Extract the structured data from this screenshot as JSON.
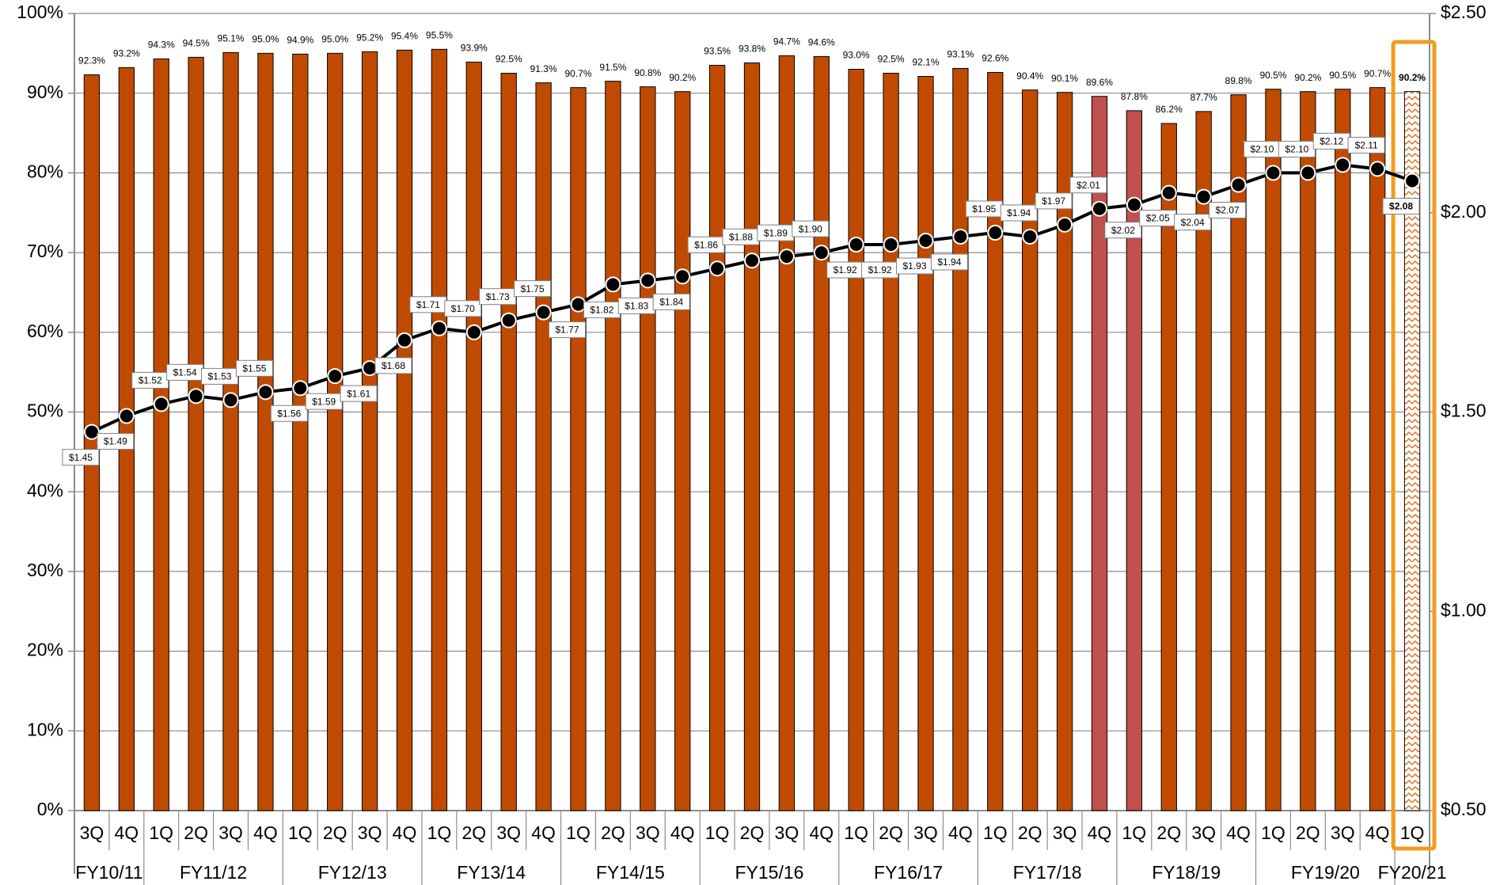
{
  "chart_data": {
    "type": "bar_line",
    "categories": [
      "3Q",
      "4Q",
      "1Q",
      "2Q",
      "3Q",
      "4Q",
      "1Q",
      "2Q",
      "3Q",
      "4Q",
      "1Q",
      "2Q",
      "3Q",
      "4Q",
      "1Q",
      "2Q",
      "3Q",
      "4Q",
      "1Q",
      "2Q",
      "3Q",
      "4Q",
      "1Q",
      "2Q",
      "3Q",
      "4Q",
      "1Q",
      "2Q",
      "3Q",
      "4Q",
      "1Q",
      "2Q",
      "3Q",
      "4Q",
      "1Q",
      "2Q",
      "3Q",
      "4Q",
      "1Q"
    ],
    "group_labels": [
      "FY10/11",
      "FY11/12",
      "FY12/13",
      "FY13/14",
      "FY14/15",
      "FY15/16",
      "FY16/17",
      "FY17/18",
      "FY18/19",
      "FY19/20",
      "FY20/21"
    ],
    "series": [
      {
        "type": "bar",
        "color": "#c04b00",
        "colors": [
          "#c04b00",
          "#c04b00",
          "#c04b00",
          "#c04b00",
          "#c04b00",
          "#c04b00",
          "#c04b00",
          "#c04b00",
          "#c04b00",
          "#c04b00",
          "#c04b00",
          "#c04b00",
          "#c04b00",
          "#c04b00",
          "#c04b00",
          "#c04b00",
          "#c04b00",
          "#c04b00",
          "#c04b00",
          "#c04b00",
          "#c04b00",
          "#c04b00",
          "#c04b00",
          "#c04b00",
          "#c04b00",
          "#c04b00",
          "#c04b00",
          "#c04b00",
          "#c04b00",
          "#c0504d",
          "#c0504d",
          "#c04b00",
          "#c04b00",
          "#c04b00",
          "#c04b00",
          "#c04b00",
          "#c04b00",
          "#c04b00",
          "#ffffff"
        ],
        "values": [
          92.3,
          93.2,
          94.3,
          94.5,
          95.1,
          95.0,
          94.9,
          95.0,
          95.2,
          95.4,
          95.5,
          93.9,
          92.5,
          91.3,
          90.7,
          91.5,
          90.8,
          90.2,
          93.5,
          93.8,
          94.7,
          94.6,
          93.0,
          92.5,
          92.1,
          93.1,
          92.6,
          90.4,
          90.1,
          89.6,
          87.8,
          86.2,
          87.7,
          89.8,
          90.5,
          90.2,
          90.5,
          90.7,
          90.2
        ],
        "value_labels": [
          "92.3%",
          "93.2%",
          "94.3%",
          "94.5%",
          "95.1%",
          "95.0%",
          "94.9%",
          "95.0%",
          "95.2%",
          "95.4%",
          "95.5%",
          "93.9%",
          "92.5%",
          "91.3%",
          "90.7%",
          "91.5%",
          "90.8%",
          "90.2%",
          "93.5%",
          "93.8%",
          "94.7%",
          "94.6%",
          "93.0%",
          "92.5%",
          "92.1%",
          "93.1%",
          "92.6%",
          "90.4%",
          "90.1%",
          "89.6%",
          "87.8%",
          "86.2%",
          "87.7%",
          "89.8%",
          "90.5%",
          "90.2%",
          "90.5%",
          "90.7%",
          "90.2%"
        ]
      },
      {
        "type": "line",
        "axis": "y2",
        "color": "#000000",
        "values": [
          1.45,
          1.49,
          1.52,
          1.54,
          1.53,
          1.55,
          1.56,
          1.59,
          1.61,
          1.68,
          1.71,
          1.7,
          1.73,
          1.75,
          1.77,
          1.82,
          1.83,
          1.84,
          1.86,
          1.88,
          1.89,
          1.9,
          1.92,
          1.92,
          1.93,
          1.94,
          1.95,
          1.94,
          1.97,
          2.01,
          2.02,
          2.05,
          2.04,
          2.07,
          2.1,
          2.1,
          2.12,
          2.11,
          2.08
        ],
        "value_labels": [
          "$1.45",
          "$1.49",
          "$1.52",
          "$1.54",
          "$1.53",
          "$1.55",
          "$1.56",
          "$1.59",
          "$1.61",
          "$1.68",
          "$1.71",
          "$1.70",
          "$1.73",
          "$1.75",
          "$1.77",
          "$1.82",
          "$1.83",
          "$1.84",
          "$1.86",
          "$1.88",
          "$1.89",
          "$1.90",
          "$1.92",
          "$1.92",
          "$1.93",
          "$1.94",
          "$1.95",
          "$1.94",
          "$1.97",
          "$2.01",
          "$2.02",
          "$2.05",
          "$2.04",
          "$2.07",
          "$2.10",
          "$2.10",
          "$2.12",
          "$2.11",
          "$2.08"
        ]
      }
    ],
    "ylim": [
      0,
      100
    ],
    "yticks": [
      {
        "value": 0,
        "label": "0%"
      },
      {
        "value": 10,
        "label": "10%"
      },
      {
        "value": 20,
        "label": "20%"
      },
      {
        "value": 30,
        "label": "30%"
      },
      {
        "value": 40,
        "label": "40%"
      },
      {
        "value": 50,
        "label": "50%"
      },
      {
        "value": 60,
        "label": "60%"
      },
      {
        "value": 70,
        "label": "70%"
      },
      {
        "value": 80,
        "label": "80%"
      },
      {
        "value": 90,
        "label": "90%"
      },
      {
        "value": 100,
        "label": "100%"
      }
    ],
    "y2lim": [
      0.5,
      2.5
    ],
    "y2ticks": [
      {
        "value": 0.5,
        "label": "$0.50"
      },
      {
        "value": 1.0,
        "label": "$1.00"
      },
      {
        "value": 1.5,
        "label": "$1.50"
      },
      {
        "value": 2.0,
        "label": "$2.00"
      },
      {
        "value": 2.5,
        "label": "$2.50"
      }
    ],
    "grid": true
  }
}
